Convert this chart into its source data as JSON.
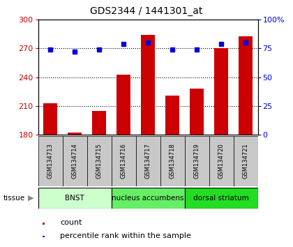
{
  "title": "GDS2344 / 1441301_at",
  "samples": [
    "GSM134713",
    "GSM134714",
    "GSM134715",
    "GSM134716",
    "GSM134717",
    "GSM134718",
    "GSM134719",
    "GSM134720",
    "GSM134721"
  ],
  "counts": [
    213,
    182,
    205,
    243,
    284,
    221,
    228,
    270,
    283
  ],
  "percentiles": [
    74,
    72,
    74,
    79,
    80,
    74,
    74,
    79,
    80
  ],
  "ylim_left": [
    180,
    300
  ],
  "ylim_right": [
    0,
    100
  ],
  "yticks_left": [
    180,
    210,
    240,
    270,
    300
  ],
  "yticks_right": [
    0,
    25,
    50,
    75,
    100
  ],
  "bar_color": "#cc0000",
  "dot_color": "#0000dd",
  "tissue_groups": [
    {
      "label": "BNST",
      "samples": [
        0,
        1,
        2
      ],
      "color": "#ccffcc"
    },
    {
      "label": "nucleus accumbens",
      "samples": [
        3,
        4,
        5
      ],
      "color": "#66ee66"
    },
    {
      "label": "dorsal striatum",
      "samples": [
        6,
        7,
        8
      ],
      "color": "#22dd22"
    }
  ],
  "legend_count_label": "count",
  "legend_pct_label": "percentile rank within the sample",
  "tissue_label": "tissue",
  "bar_color_left": "#cc0000",
  "ylabel_right_color": "#0000dd",
  "tick_bg_color": "#c8c8c8",
  "fig_width": 4.2,
  "fig_height": 3.54,
  "dpi": 100
}
